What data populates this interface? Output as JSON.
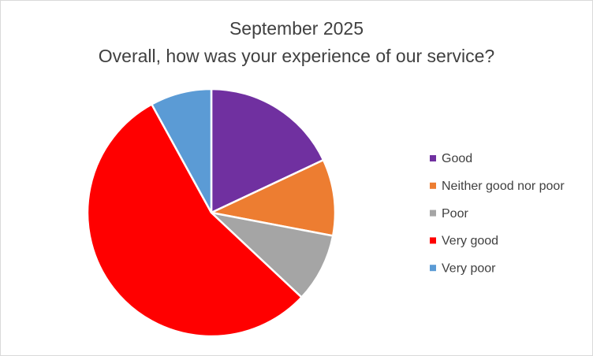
{
  "chart_data": {
    "type": "pie",
    "title": "September 2025",
    "subtitle": "Overall, how was your experience of our service?",
    "categories": [
      "Good",
      "Neither good nor poor",
      "Poor",
      "Very good",
      "Very poor"
    ],
    "values": [
      18,
      10,
      9,
      55,
      8
    ],
    "colors": [
      "#7030a0",
      "#ed7d31",
      "#a5a5a5",
      "#ff0000",
      "#5b9bd5"
    ],
    "legend": "right"
  }
}
